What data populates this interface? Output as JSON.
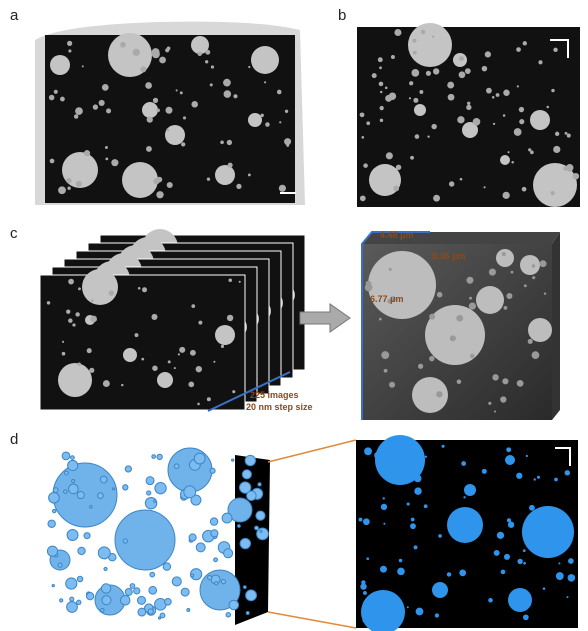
{
  "panels": [
    {
      "label": "a"
    },
    {
      "label": "b"
    },
    {
      "label": "c"
    },
    {
      "label": "d"
    }
  ],
  "annotations": {
    "slice_count": "225 images",
    "step_size": "20 nm step size",
    "depth": "4.48 μm",
    "width": "8.36 μm",
    "height": "6.77 μm"
  }
}
